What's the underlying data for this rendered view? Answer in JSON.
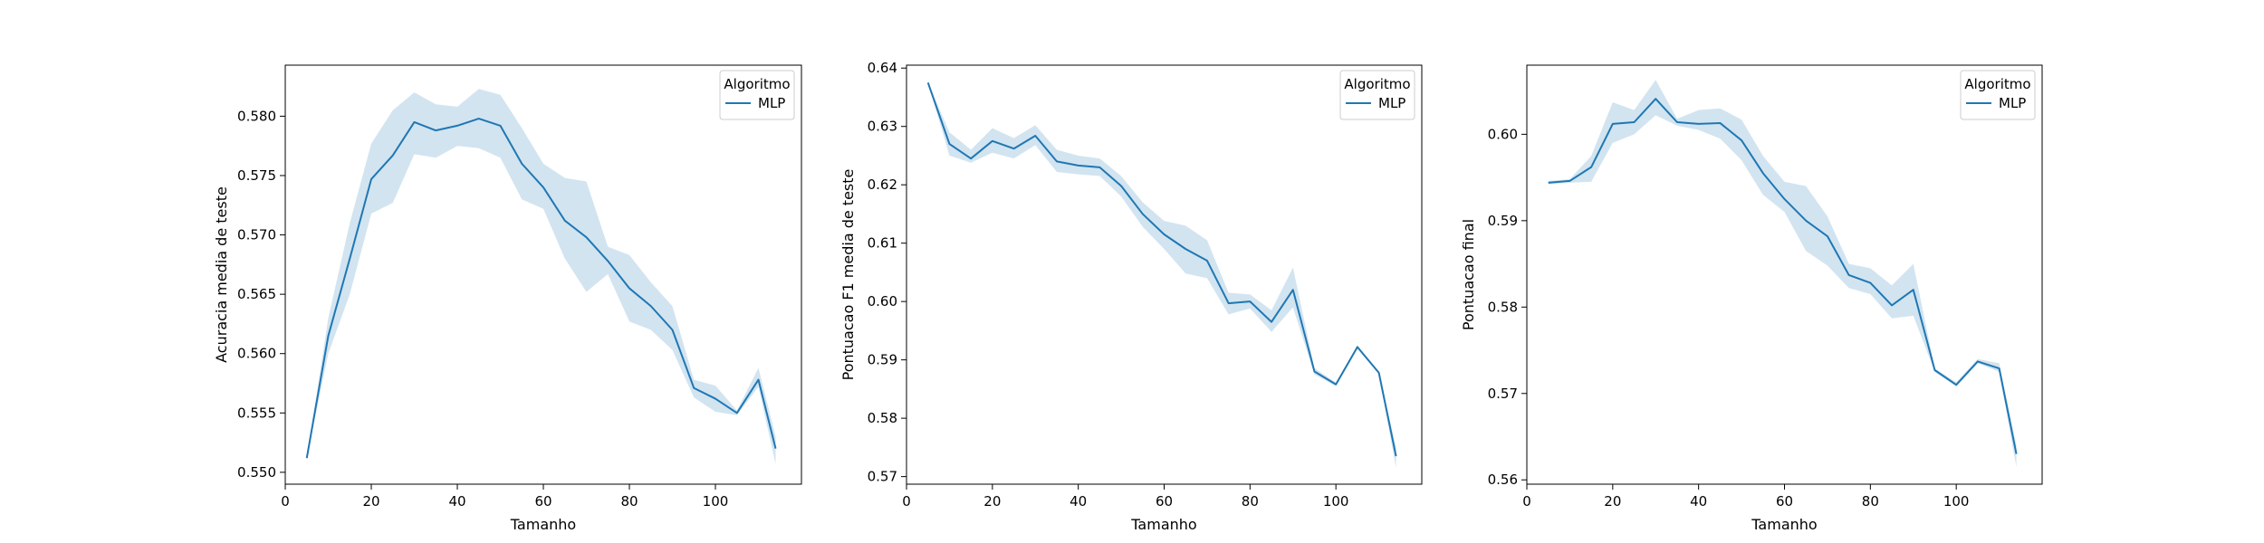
{
  "chart_data": [
    {
      "type": "line",
      "xlabel": "Tamanho",
      "ylabel": "Acuracia media de teste",
      "xlim": [
        0,
        120
      ],
      "ylim": [
        0.549,
        0.5843
      ],
      "xticks": [
        0,
        20,
        40,
        60,
        80,
        100
      ],
      "yticks": [
        0.55,
        0.555,
        0.56,
        0.565,
        0.57,
        0.575,
        0.58
      ],
      "ytick_decimals": 3,
      "grid": false,
      "legend": {
        "title": "Algoritmo",
        "position": "top-right",
        "entries": [
          "MLP"
        ]
      },
      "x": [
        5,
        10,
        15,
        20,
        25,
        30,
        35,
        40,
        45,
        50,
        55,
        60,
        65,
        70,
        75,
        80,
        85,
        90,
        95,
        100,
        105,
        110,
        114
      ],
      "series": [
        {
          "name": "MLP",
          "color": "#1f77b4",
          "values": [
            0.5512,
            0.5615,
            0.568,
            0.5747,
            0.5767,
            0.5795,
            0.5788,
            0.5792,
            0.5798,
            0.5792,
            0.576,
            0.574,
            0.5712,
            0.5698,
            0.5678,
            0.5655,
            0.564,
            0.562,
            0.5571,
            0.5562,
            0.555,
            0.5578,
            0.552
          ],
          "lower": [
            0.5512,
            0.56,
            0.565,
            0.5718,
            0.5727,
            0.5768,
            0.5765,
            0.5775,
            0.5773,
            0.5765,
            0.573,
            0.5722,
            0.568,
            0.5652,
            0.5667,
            0.5627,
            0.562,
            0.5603,
            0.5563,
            0.5551,
            0.5548,
            0.5572,
            0.5507
          ],
          "upper": [
            0.5512,
            0.563,
            0.571,
            0.5777,
            0.5805,
            0.582,
            0.581,
            0.5808,
            0.5823,
            0.5818,
            0.579,
            0.576,
            0.5748,
            0.5745,
            0.569,
            0.5683,
            0.566,
            0.564,
            0.5578,
            0.5573,
            0.5552,
            0.5588,
            0.553
          ]
        }
      ]
    },
    {
      "type": "line",
      "xlabel": "Tamanho",
      "ylabel": "Pontuacao F1 media de teste",
      "xlim": [
        0,
        120
      ],
      "ylim": [
        0.5687,
        0.6405
      ],
      "xticks": [
        0,
        20,
        40,
        60,
        80,
        100
      ],
      "yticks": [
        0.57,
        0.58,
        0.59,
        0.6,
        0.61,
        0.62,
        0.63,
        0.64
      ],
      "ytick_decimals": 2,
      "grid": false,
      "legend": {
        "title": "Algoritmo",
        "position": "top-right",
        "entries": [
          "MLP"
        ]
      },
      "x": [
        5,
        10,
        15,
        20,
        25,
        30,
        35,
        40,
        45,
        50,
        55,
        60,
        65,
        70,
        75,
        80,
        85,
        90,
        95,
        100,
        105,
        110,
        114
      ],
      "series": [
        {
          "name": "MLP",
          "color": "#1f77b4",
          "values": [
            0.6375,
            0.627,
            0.6245,
            0.6275,
            0.6262,
            0.6284,
            0.624,
            0.6233,
            0.623,
            0.6198,
            0.615,
            0.6115,
            0.609,
            0.607,
            0.5997,
            0.6,
            0.5965,
            0.602,
            0.588,
            0.5858,
            0.5922,
            0.5878,
            0.5735
          ],
          "lower": [
            0.6375,
            0.625,
            0.6238,
            0.6255,
            0.6245,
            0.6268,
            0.6222,
            0.6218,
            0.6215,
            0.618,
            0.6128,
            0.609,
            0.6048,
            0.604,
            0.5978,
            0.5988,
            0.5948,
            0.599,
            0.5875,
            0.5855,
            0.592,
            0.5876,
            0.5715
          ],
          "upper": [
            0.6375,
            0.629,
            0.626,
            0.6297,
            0.628,
            0.6302,
            0.626,
            0.625,
            0.6245,
            0.6215,
            0.617,
            0.6138,
            0.613,
            0.6105,
            0.6015,
            0.6012,
            0.5985,
            0.6058,
            0.5886,
            0.5861,
            0.5925,
            0.588,
            0.575
          ]
        }
      ]
    },
    {
      "type": "line",
      "xlabel": "Tamanho",
      "ylabel": "Pontuacao final",
      "xlim": [
        0,
        120
      ],
      "ylim": [
        0.5595,
        0.608
      ],
      "xticks": [
        0,
        20,
        40,
        60,
        80,
        100
      ],
      "yticks": [
        0.56,
        0.57,
        0.58,
        0.59,
        0.6
      ],
      "ytick_decimals": 2,
      "grid": false,
      "legend": {
        "title": "Algoritmo",
        "position": "top-right",
        "entries": [
          "MLP"
        ]
      },
      "x": [
        5,
        10,
        15,
        20,
        25,
        30,
        35,
        40,
        45,
        50,
        55,
        60,
        65,
        70,
        75,
        80,
        85,
        90,
        95,
        100,
        105,
        110,
        114
      ],
      "series": [
        {
          "name": "MLP",
          "color": "#1f77b4",
          "values": [
            0.5944,
            0.5946,
            0.5962,
            0.6012,
            0.6014,
            0.6041,
            0.6014,
            0.6012,
            0.6013,
            0.5993,
            0.5955,
            0.5925,
            0.59,
            0.5882,
            0.5837,
            0.5828,
            0.5802,
            0.582,
            0.5727,
            0.571,
            0.5737,
            0.5729,
            0.563
          ],
          "lower": [
            0.5942,
            0.5944,
            0.5945,
            0.599,
            0.6,
            0.6022,
            0.601,
            0.6005,
            0.5995,
            0.597,
            0.593,
            0.591,
            0.5865,
            0.5848,
            0.5822,
            0.5815,
            0.5787,
            0.579,
            0.5725,
            0.5708,
            0.5735,
            0.5725,
            0.5615
          ],
          "upper": [
            0.5946,
            0.5948,
            0.5975,
            0.6037,
            0.6028,
            0.6063,
            0.6018,
            0.6028,
            0.603,
            0.6017,
            0.5975,
            0.5945,
            0.594,
            0.5905,
            0.585,
            0.5845,
            0.5825,
            0.585,
            0.5729,
            0.5713,
            0.574,
            0.5735,
            0.564
          ]
        }
      ]
    }
  ]
}
